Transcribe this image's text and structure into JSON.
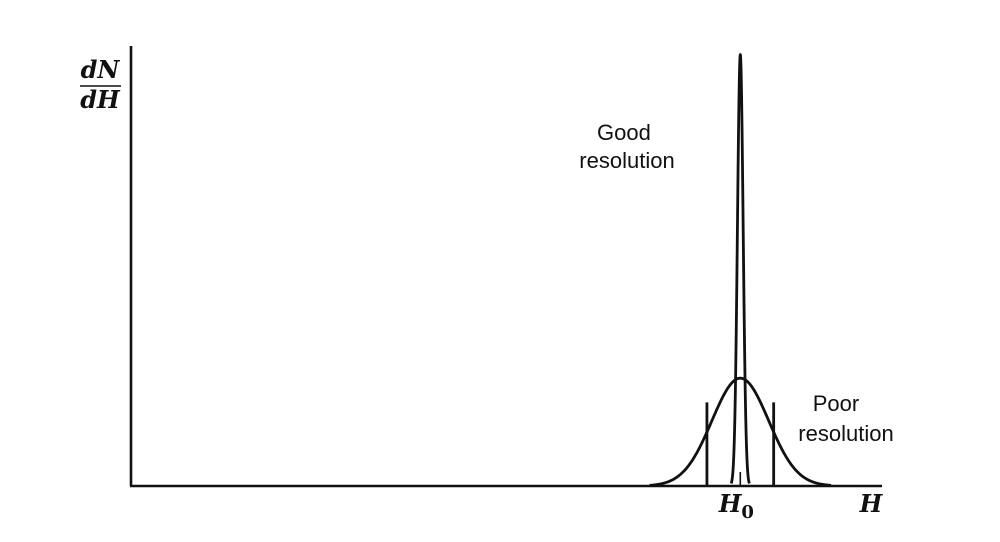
{
  "chart_data": {
    "type": "line",
    "title": "",
    "ylabel": {
      "numerator": "dN",
      "denominator": "dH"
    },
    "xlabel": "H",
    "x_marker": {
      "symbol": "H",
      "subscript": "0"
    },
    "grid": false,
    "legend": "none",
    "annotations": [
      {
        "id": "good",
        "lines": [
          "Good",
          "resolution"
        ]
      },
      {
        "id": "poor",
        "lines": [
          "Poor",
          "resolution"
        ]
      }
    ],
    "series": [
      {
        "id": "good",
        "shape": "gaussian",
        "center": 0,
        "sigma": 0.1,
        "peak": 1.0
      },
      {
        "id": "poor",
        "shape": "gaussian",
        "center": 0,
        "sigma": 1.0,
        "peak": 0.25
      }
    ],
    "xlim": [
      -21.5,
      5
    ],
    "ylim": [
      0,
      1.02
    ]
  }
}
